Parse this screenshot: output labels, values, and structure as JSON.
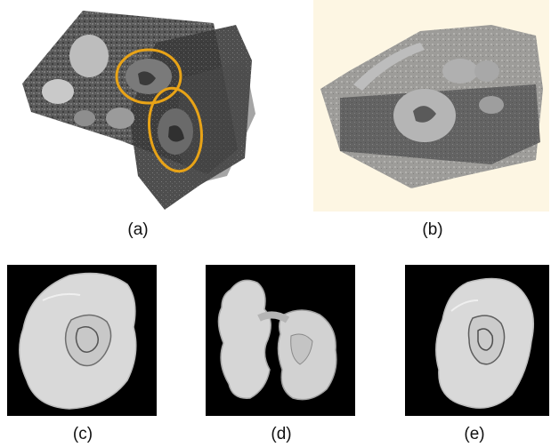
{
  "figure": {
    "panels": [
      {
        "id": "a",
        "caption": "(a)"
      },
      {
        "id": "b",
        "caption": "(b)"
      },
      {
        "id": "c",
        "caption": "(c)"
      },
      {
        "id": "d",
        "caption": "(d)"
      },
      {
        "id": "e",
        "caption": "(e)"
      }
    ]
  },
  "colors": {
    "highlight_ellipse": "#e8a317",
    "panel_b_background": "#fdf6e3",
    "render_background": "#000000",
    "surface": "#d9d9d9"
  }
}
